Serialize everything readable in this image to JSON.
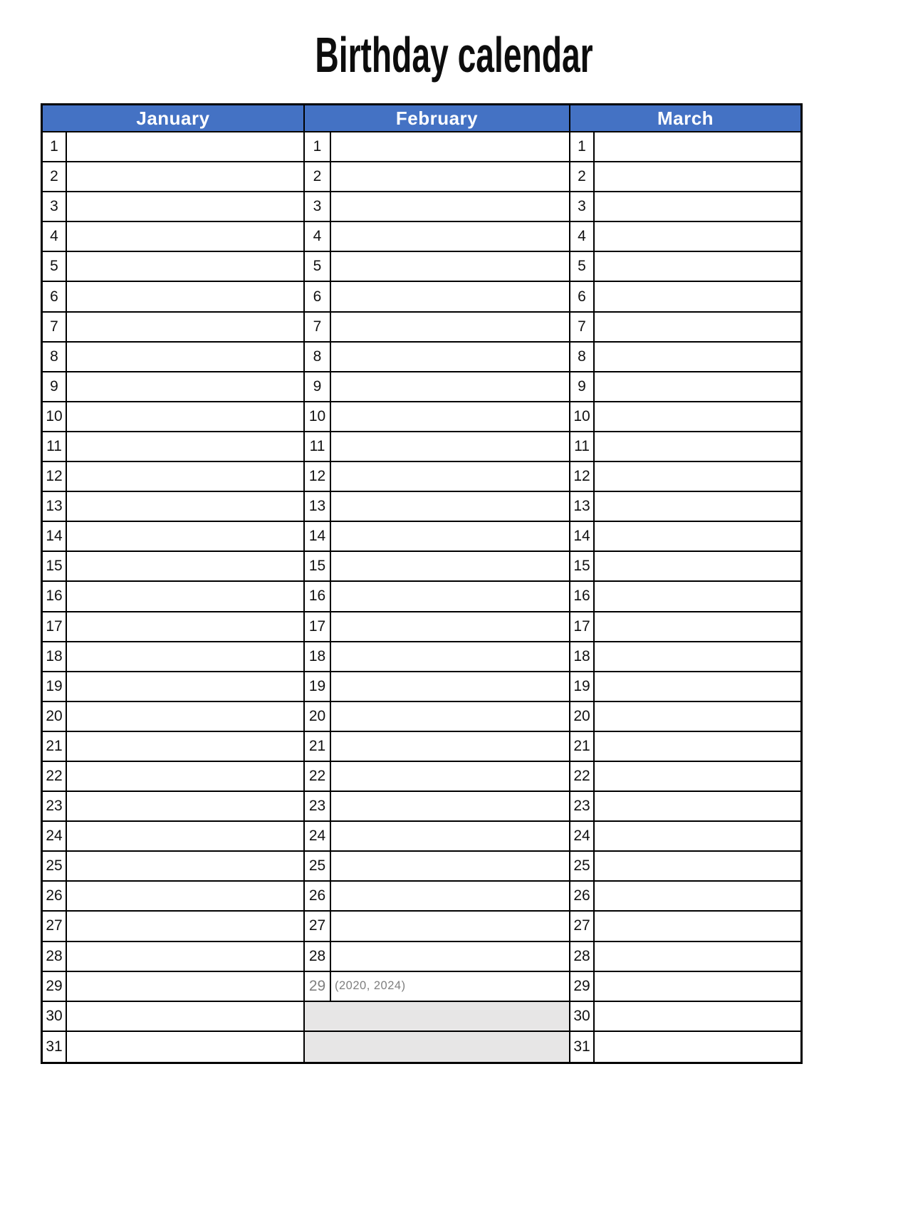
{
  "title": "Birthday calendar",
  "calendar": {
    "row_count": 31,
    "months": [
      {
        "name": "January",
        "days": 31
      },
      {
        "name": "February",
        "days": 28,
        "extra_day": {
          "number": 29,
          "note": "(2020, 2024)"
        },
        "disabled_rows": [
          30,
          31
        ]
      },
      {
        "name": "March",
        "days": 31
      }
    ]
  },
  "colors": {
    "page_bg": "#ffffff",
    "header_bg": "#4472c4",
    "header_text": "#ffffff",
    "border": "#000000",
    "disabled_fill": "#e7e6e6",
    "muted_text": "#7f7f7f",
    "day_number_text": "#111111",
    "title_text": "#0d0d0d"
  }
}
